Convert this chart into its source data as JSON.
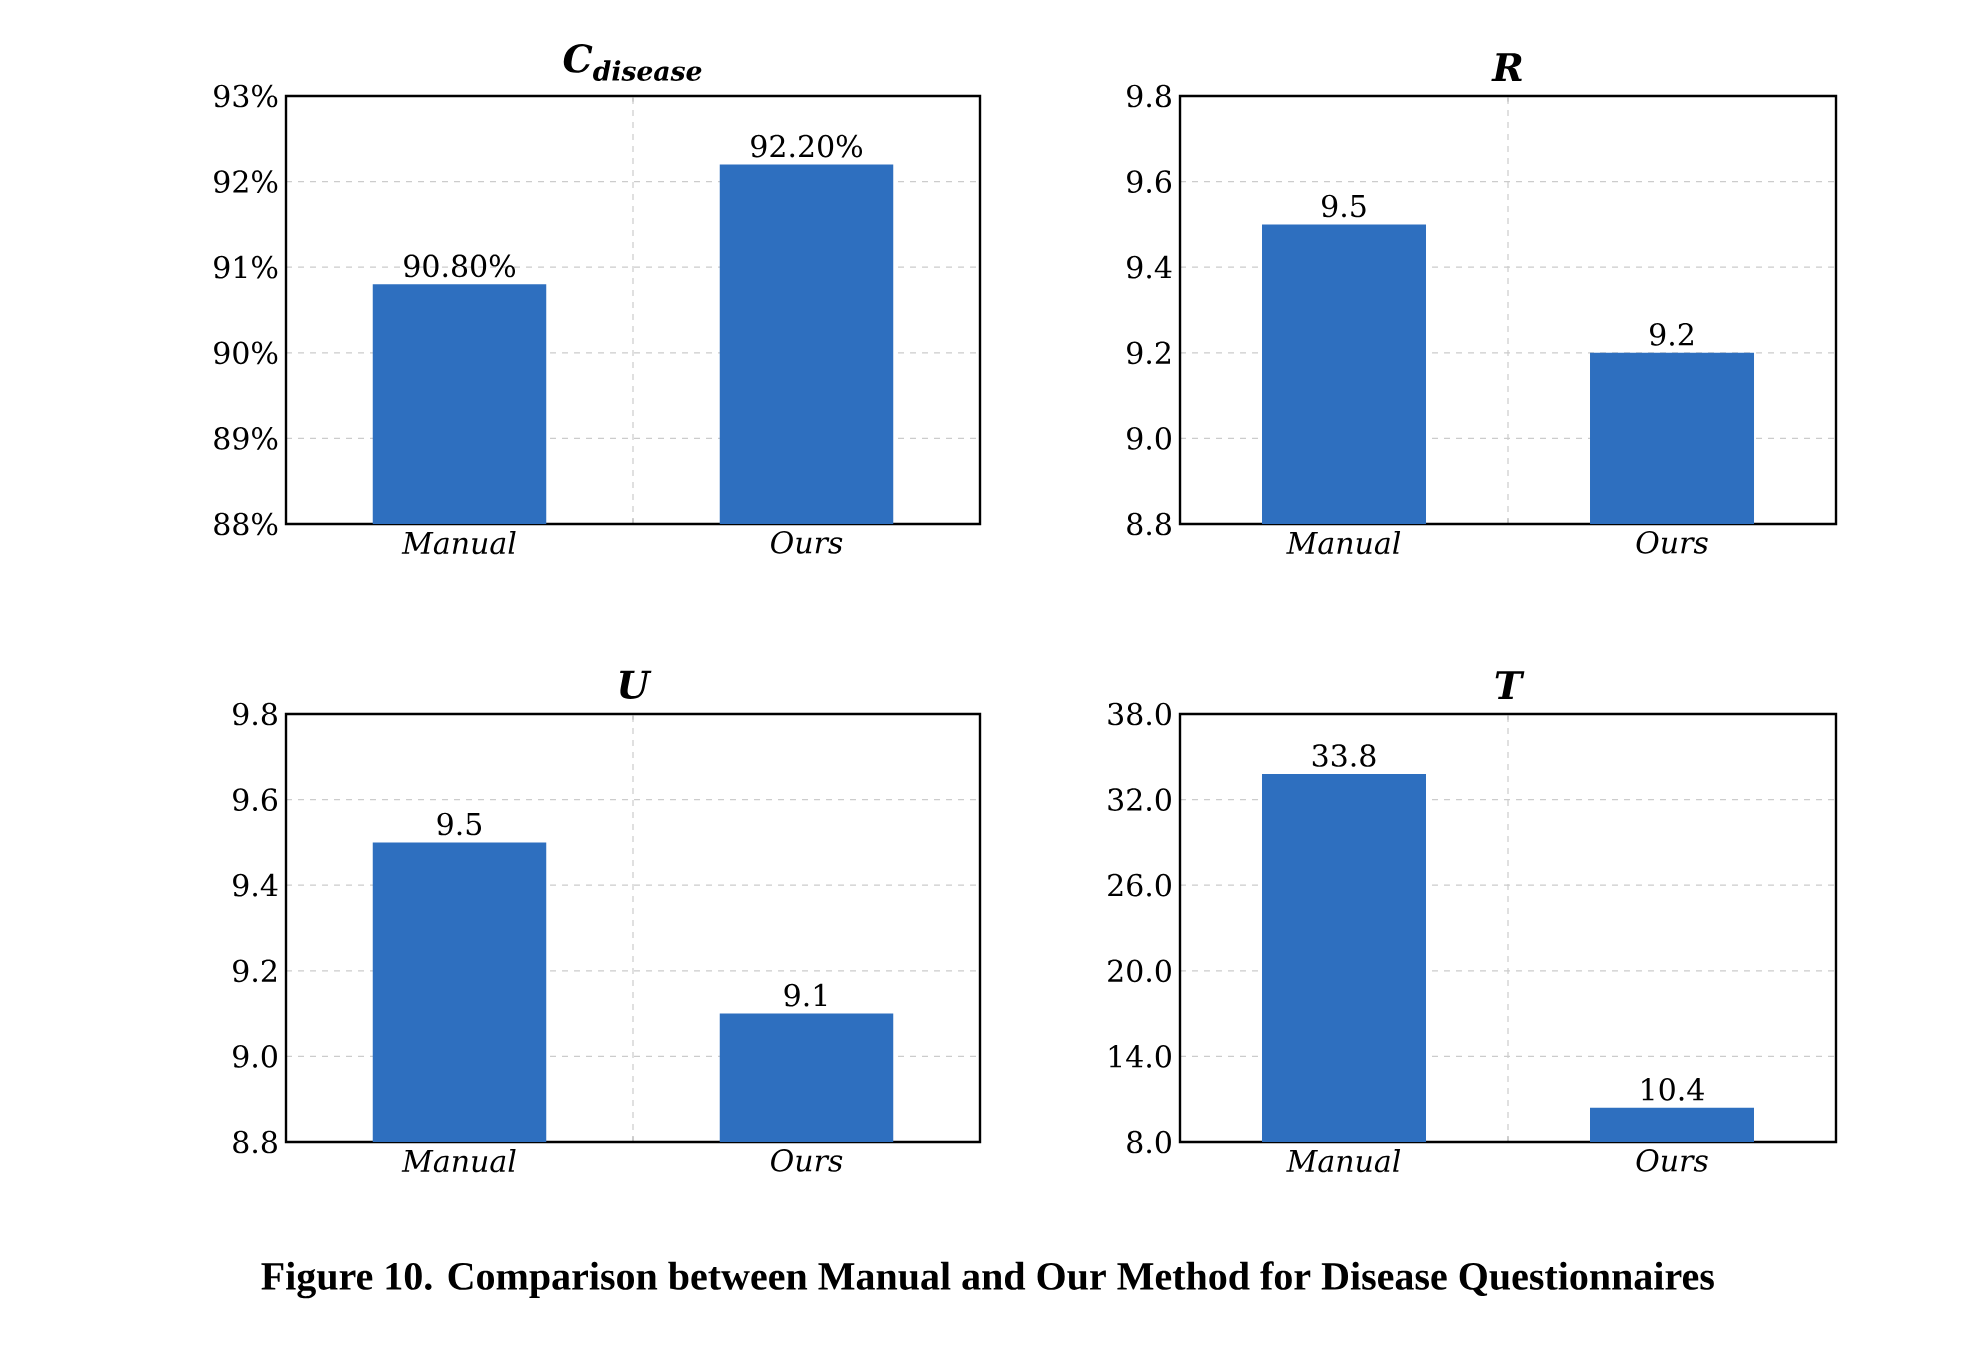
{
  "chart_data": [
    {
      "type": "bar",
      "title": "C$_{disease}$",
      "categories": [
        "Manual",
        "Ours"
      ],
      "values": [
        90.8,
        92.2
      ],
      "color": "#2e6fbf",
      "value_labels": [
        "90.80%",
        "92.20%"
      ],
      "ylim": [
        88,
        93
      ],
      "yticks": [
        {
          "value": 88,
          "label": "88%"
        },
        {
          "value": 89,
          "label": "89%"
        },
        {
          "value": 90,
          "label": "90%"
        },
        {
          "value": 91,
          "label": "91%"
        },
        {
          "value": 92,
          "label": "92%"
        },
        {
          "value": 93,
          "label": "93%"
        }
      ],
      "grid": true
    },
    {
      "type": "bar",
      "title": "R",
      "categories": [
        "Manual",
        "Ours"
      ],
      "values": [
        9.5,
        9.2
      ],
      "color": "#2e6fbf",
      "data_labels": true,
      "ylim": [
        8.8,
        9.8
      ],
      "yticks": [
        8.8,
        {
          "value": 9,
          "label": "9.0"
        },
        9.2,
        9.4,
        9.6,
        9.8
      ],
      "grid": true
    },
    {
      "type": "bar",
      "title": "U",
      "categories": [
        "Manual",
        "Ours"
      ],
      "values": [
        9.5,
        9.1
      ],
      "color": "#2e6fbf",
      "data_labels": true,
      "ylim": [
        8.8,
        9.8
      ],
      "yticks": [
        8.8,
        {
          "value": 9,
          "label": "9.0"
        },
        9.2,
        9.4,
        9.6,
        9.8
      ],
      "grid": true
    },
    {
      "type": "bar",
      "title": "T",
      "categories": [
        "Manual",
        "Ours"
      ],
      "values": [
        33.8,
        10.4
      ],
      "color": "#2e6fbf",
      "data_labels": true,
      "ylim": [
        8,
        38
      ],
      "yticks": [
        {
          "value": 8,
          "label": "8.0"
        },
        {
          "value": 14,
          "label": "14.0"
        },
        {
          "value": 20,
          "label": "20.0"
        },
        {
          "value": 26,
          "label": "26.0"
        },
        {
          "value": 32,
          "label": "32.0"
        },
        {
          "value": 38,
          "label": "38.0"
        }
      ],
      "grid": true,
      "annotations": [
        "Figure 10. Comparison between Manual and Our Method for Disease Questionnaires"
      ]
    }
  ]
}
